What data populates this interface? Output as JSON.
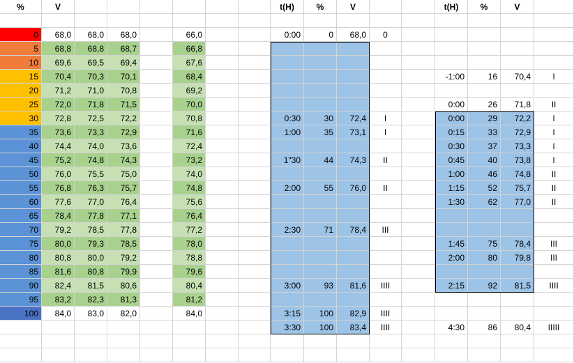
{
  "headers": {
    "col_A": "%",
    "col_B": "V",
    "col_I": "t(H)",
    "col_J": "%",
    "col_K": "V",
    "col_N": "t(H)",
    "col_O": "%",
    "col_P": "V"
  },
  "left_table": [
    {
      "p": "0",
      "v1": "68,0",
      "v2": "68,0",
      "v3": "68,0",
      "v5": "66,0"
    },
    {
      "p": "5",
      "v1": "68,8",
      "v2": "68,8",
      "v3": "68,7",
      "v5": "66,8"
    },
    {
      "p": "10",
      "v1": "69,6",
      "v2": "69,5",
      "v3": "69,4",
      "v5": "67,6"
    },
    {
      "p": "15",
      "v1": "70,4",
      "v2": "70,3",
      "v3": "70,1",
      "v5": "68,4"
    },
    {
      "p": "20",
      "v1": "71,2",
      "v2": "71,0",
      "v3": "70,8",
      "v5": "69,2"
    },
    {
      "p": "25",
      "v1": "72,0",
      "v2": "71,8",
      "v3": "71,5",
      "v5": "70,0"
    },
    {
      "p": "30",
      "v1": "72,8",
      "v2": "72,5",
      "v3": "72,2",
      "v5": "70,8"
    },
    {
      "p": "35",
      "v1": "73,6",
      "v2": "73,3",
      "v3": "72,9",
      "v5": "71,6"
    },
    {
      "p": "40",
      "v1": "74,4",
      "v2": "74,0",
      "v3": "73,6",
      "v5": "72,4"
    },
    {
      "p": "45",
      "v1": "75,2",
      "v2": "74,8",
      "v3": "74,3",
      "v5": "73,2"
    },
    {
      "p": "50",
      "v1": "76,0",
      "v2": "75,5",
      "v3": "75,0",
      "v5": "74,0"
    },
    {
      "p": "55",
      "v1": "76,8",
      "v2": "76,3",
      "v3": "75,7",
      "v5": "74,8"
    },
    {
      "p": "60",
      "v1": "77,6",
      "v2": "77,0",
      "v3": "76,4",
      "v5": "75,6"
    },
    {
      "p": "65",
      "v1": "78,4",
      "v2": "77,8",
      "v3": "77,1",
      "v5": "76,4"
    },
    {
      "p": "70",
      "v1": "79,2",
      "v2": "78,5",
      "v3": "77,8",
      "v5": "77,2"
    },
    {
      "p": "75",
      "v1": "80,0",
      "v2": "79,3",
      "v3": "78,5",
      "v5": "78,0"
    },
    {
      "p": "80",
      "v1": "80,8",
      "v2": "80,0",
      "v3": "79,2",
      "v5": "78,8"
    },
    {
      "p": "85",
      "v1": "81,6",
      "v2": "80,8",
      "v3": "79,9",
      "v5": "79,6"
    },
    {
      "p": "90",
      "v1": "82,4",
      "v2": "81,5",
      "v3": "80,6",
      "v5": "80,4"
    },
    {
      "p": "95",
      "v1": "83,2",
      "v2": "82,3",
      "v3": "81,3",
      "v5": "81,2"
    },
    {
      "p": "100",
      "v1": "84,0",
      "v2": "83,0",
      "v3": "82,0",
      "v5": "84,0"
    }
  ],
  "middle_entries": [
    {
      "t": "0:00",
      "p": "0",
      "v": "68,0",
      "m": "0"
    },
    {
      "t": "",
      "p": "",
      "v": "",
      "m": ""
    },
    {
      "t": "",
      "p": "",
      "v": "",
      "m": ""
    },
    {
      "t": "",
      "p": "",
      "v": "",
      "m": ""
    },
    {
      "t": "",
      "p": "",
      "v": "",
      "m": ""
    },
    {
      "t": "",
      "p": "",
      "v": "",
      "m": ""
    },
    {
      "t": "0:30",
      "p": "30",
      "v": "72,4",
      "m": "I"
    },
    {
      "t": "1:00",
      "p": "35",
      "v": "73,1",
      "m": "I"
    },
    {
      "t": "",
      "p": "",
      "v": "",
      "m": ""
    },
    {
      "t": "1\"30",
      "p": "44",
      "v": "74,3",
      "m": "II"
    },
    {
      "t": "",
      "p": "",
      "v": "",
      "m": ""
    },
    {
      "t": "2:00",
      "p": "55",
      "v": "76,0",
      "m": "II"
    },
    {
      "t": "",
      "p": "",
      "v": "",
      "m": ""
    },
    {
      "t": "",
      "p": "",
      "v": "",
      "m": ""
    },
    {
      "t": "2:30",
      "p": "71",
      "v": "78,4",
      "m": "III"
    },
    {
      "t": "",
      "p": "",
      "v": "",
      "m": ""
    },
    {
      "t": "",
      "p": "",
      "v": "",
      "m": ""
    },
    {
      "t": "",
      "p": "",
      "v": "",
      "m": ""
    },
    {
      "t": "3:00",
      "p": "93",
      "v": "81,6",
      "m": "IIII"
    },
    {
      "t": "",
      "p": "",
      "v": "",
      "m": ""
    },
    {
      "t": "3:15",
      "p": "100",
      "v": "82,9",
      "m": "IIII"
    },
    {
      "t": "3:30",
      "p": "100",
      "v": "83,4",
      "m": "IIII"
    }
  ],
  "right_entries": [
    {
      "t": "",
      "p": "",
      "v": "",
      "m": ""
    },
    {
      "t": "",
      "p": "",
      "v": "",
      "m": ""
    },
    {
      "t": "",
      "p": "",
      "v": "",
      "m": ""
    },
    {
      "t": "-1:00",
      "p": "16",
      "v": "70,4",
      "m": "I"
    },
    {
      "t": "",
      "p": "",
      "v": "",
      "m": ""
    },
    {
      "t": "0:00",
      "p": "26",
      "v": "71,8",
      "m": "II"
    },
    {
      "t": "0:00",
      "p": "29",
      "v": "72,2",
      "m": "I"
    },
    {
      "t": "0:15",
      "p": "33",
      "v": "72,9",
      "m": "I"
    },
    {
      "t": "0:30",
      "p": "37",
      "v": "73,3",
      "m": "I"
    },
    {
      "t": "0:45",
      "p": "40",
      "v": "73,8",
      "m": "I"
    },
    {
      "t": "1:00",
      "p": "46",
      "v": "74,8",
      "m": "II"
    },
    {
      "t": "1:15",
      "p": "52",
      "v": "75,7",
      "m": "II"
    },
    {
      "t": "1:30",
      "p": "62",
      "v": "77,0",
      "m": "II"
    },
    {
      "t": "",
      "p": "",
      "v": "",
      "m": ""
    },
    {
      "t": "",
      "p": "",
      "v": "",
      "m": ""
    },
    {
      "t": "1:45",
      "p": "75",
      "v": "78,4",
      "m": "III"
    },
    {
      "t": "2:00",
      "p": "80",
      "v": "79,8",
      "m": "III"
    },
    {
      "t": "",
      "p": "",
      "v": "",
      "m": ""
    },
    {
      "t": "2:15",
      "p": "92",
      "v": "81,5",
      "m": "IIII"
    },
    {
      "t": "",
      "p": "",
      "v": "",
      "m": ""
    },
    {
      "t": "",
      "p": "",
      "v": "",
      "m": ""
    },
    {
      "t": "4:30",
      "p": "86",
      "v": "80,4",
      "m": "IIIII"
    }
  ],
  "colors": {
    "red": "#ff0000",
    "orange": "#f07c3a",
    "yellow": "#ffc000",
    "blue": "#5b93d6",
    "darkblue": "#4a72c4",
    "green": "#a9d18e",
    "lightgreen": "#c6e0b4",
    "box": "#9dc3e6"
  }
}
